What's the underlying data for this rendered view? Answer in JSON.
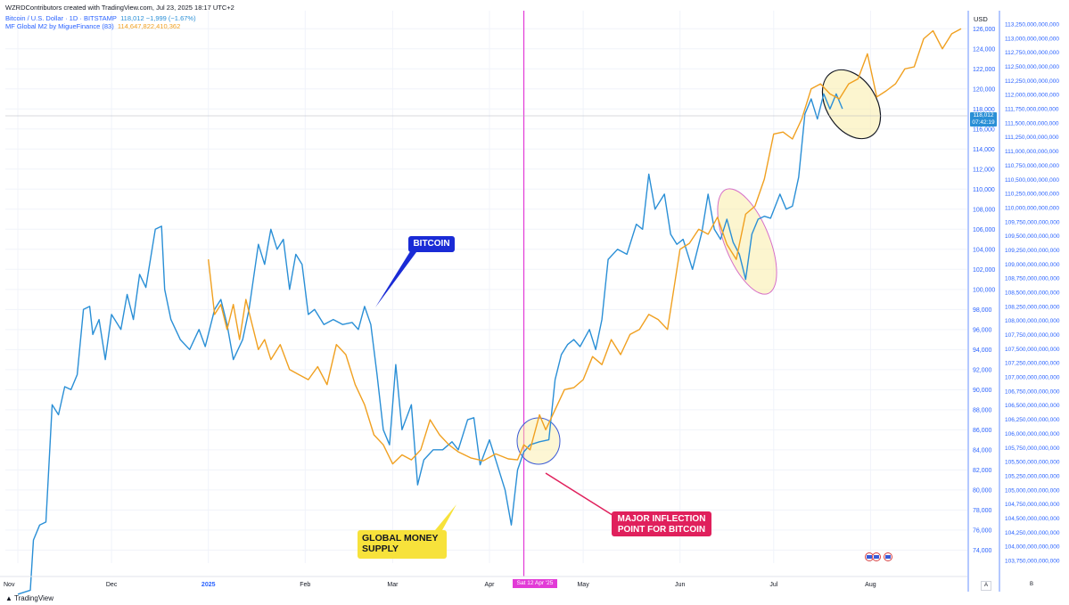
{
  "header": {
    "credit": "WZRDContributors created with TradingView.com, Jul 23, 2025 18:17 UTC+2",
    "btc_series": "Bitcoin / U.S. Dollar · 1D · BITSTAMP",
    "btc_values": "118,012  −1,999 (−1.67%)",
    "m2_series": "MF Global M2 by MigueFinance (83)",
    "m2_value": "114,647,822,410,362"
  },
  "annotations": {
    "bitcoin": "BITCOIN",
    "money_line1": "GLOBAL MONEY",
    "money_line2": "SUPPLY",
    "inflection_line1": "MAJOR INFLECTION",
    "inflection_line2": "POINT FOR BITCOIN"
  },
  "axis": {
    "currency": "USD",
    "price_tag_value": "118,012",
    "price_tag_time": "07:42:19",
    "date_tag": "Sat 12 Apr '25",
    "scale_a": "A",
    "scale_b": "B"
  },
  "footer": {
    "logo": "TradingView"
  },
  "colors": {
    "bitcoin": "#2a8fd6",
    "global_m2": "#f0a020",
    "inflection_line": "#e23bd7",
    "axis_text": "#2962ff"
  },
  "chart_data": {
    "type": "line",
    "xlabel": "",
    "ylabel": "",
    "x_ticks": [
      "Nov",
      "Dec",
      "2025",
      "Feb",
      "Mar",
      "Apr",
      "May",
      "Jun",
      "Jul",
      "Aug"
    ],
    "y_ticks_usd": [
      74000,
      76000,
      78000,
      80000,
      82000,
      84000,
      86000,
      88000,
      90000,
      92000,
      94000,
      96000,
      98000,
      100000,
      102000,
      104000,
      106000,
      108000,
      110000,
      112000,
      114000,
      116000,
      118000,
      120000,
      122000,
      124000,
      126000
    ],
    "ylim_usd": [
      72700,
      127800
    ],
    "y_ticks_m2": [
      "103,750,000,000,000",
      "104,000,000,000,000",
      "104,250,000,000,000",
      "104,500,000,000,000",
      "104,750,000,000,000",
      "105,000,000,000,000",
      "105,250,000,000,000",
      "105,500,000,000,000",
      "105,750,000,000,000",
      "106,000,000,000,000",
      "106,250,000,000,000",
      "106,500,000,000,000",
      "106,750,000,000,000",
      "107,000,000,000,000",
      "107,250,000,000,000",
      "107,500,000,000,000",
      "107,750,000,000,000",
      "108,000,000,000,000",
      "108,250,000,000,000",
      "108,500,000,000,000",
      "108,750,000,000,000",
      "109,000,000,000,000",
      "109,250,000,000,000",
      "109,500,000,000,000",
      "109,750,000,000,000",
      "110,000,000,000,000",
      "110,250,000,000,000",
      "110,500,000,000,000",
      "110,750,000,000,000",
      "111,000,000,000,000",
      "111,250,000,000,000",
      "111,500,000,000,000",
      "111,750,000,000,000",
      "112,000,000,000,000",
      "112,250,000,000,000",
      "112,500,000,000,000",
      "112,750,000,000,000",
      "113,000,000,000,000",
      "113,250,000,000,000"
    ],
    "series": [
      {
        "name": "Bitcoin / U.S. Dollar · 1D · BITSTAMP",
        "values": [
          [
            "2024-11-01",
            69600
          ],
          [
            "2024-11-05",
            70000
          ],
          [
            "2024-11-06",
            75000
          ],
          [
            "2024-11-08",
            76500
          ],
          [
            "2024-11-10",
            76800
          ],
          [
            "2024-11-12",
            88500
          ],
          [
            "2024-11-14",
            87500
          ],
          [
            "2024-11-16",
            90300
          ],
          [
            "2024-11-18",
            90000
          ],
          [
            "2024-11-20",
            91500
          ],
          [
            "2024-11-22",
            98000
          ],
          [
            "2024-11-24",
            98300
          ],
          [
            "2024-11-25",
            95500
          ],
          [
            "2024-11-27",
            97000
          ],
          [
            "2024-11-29",
            93000
          ],
          [
            "2024-12-01",
            97500
          ],
          [
            "2024-12-04",
            96000
          ],
          [
            "2024-12-06",
            99500
          ],
          [
            "2024-12-08",
            97000
          ],
          [
            "2024-12-10",
            101500
          ],
          [
            "2024-12-12",
            100200
          ],
          [
            "2024-12-15",
            106000
          ],
          [
            "2024-12-17",
            106300
          ],
          [
            "2024-12-18",
            100000
          ],
          [
            "2024-12-20",
            97000
          ],
          [
            "2024-12-23",
            95000
          ],
          [
            "2024-12-26",
            94000
          ],
          [
            "2024-12-29",
            96000
          ],
          [
            "2024-12-31",
            94300
          ],
          [
            "2025-01-03",
            98000
          ],
          [
            "2025-01-05",
            99000
          ],
          [
            "2025-01-07",
            96500
          ],
          [
            "2025-01-09",
            93000
          ],
          [
            "2025-01-12",
            95000
          ],
          [
            "2025-01-14",
            98000
          ],
          [
            "2025-01-17",
            104500
          ],
          [
            "2025-01-19",
            102500
          ],
          [
            "2025-01-21",
            106000
          ],
          [
            "2025-01-23",
            104000
          ],
          [
            "2025-01-25",
            105000
          ],
          [
            "2025-01-27",
            100000
          ],
          [
            "2025-01-29",
            103500
          ],
          [
            "2025-01-31",
            102500
          ],
          [
            "2025-02-02",
            97500
          ],
          [
            "2025-02-04",
            98000
          ],
          [
            "2025-02-07",
            96500
          ],
          [
            "2025-02-10",
            97000
          ],
          [
            "2025-02-13",
            96500
          ],
          [
            "2025-02-16",
            96700
          ],
          [
            "2025-02-18",
            96000
          ],
          [
            "2025-02-20",
            98300
          ],
          [
            "2025-02-22",
            96500
          ],
          [
            "2025-02-24",
            91500
          ],
          [
            "2025-02-26",
            86000
          ],
          [
            "2025-02-28",
            84500
          ],
          [
            "2025-03-02",
            92500
          ],
          [
            "2025-03-04",
            86000
          ],
          [
            "2025-03-07",
            88500
          ],
          [
            "2025-03-09",
            80500
          ],
          [
            "2025-03-11",
            83000
          ],
          [
            "2025-03-14",
            84000
          ],
          [
            "2025-03-17",
            84000
          ],
          [
            "2025-03-20",
            84800
          ],
          [
            "2025-03-22",
            84000
          ],
          [
            "2025-03-25",
            87000
          ],
          [
            "2025-03-27",
            87200
          ],
          [
            "2025-03-29",
            82500
          ],
          [
            "2025-04-01",
            85000
          ],
          [
            "2025-04-03",
            83000
          ],
          [
            "2025-04-06",
            80000
          ],
          [
            "2025-04-08",
            76500
          ],
          [
            "2025-04-10",
            82000
          ],
          [
            "2025-04-12",
            83800
          ],
          [
            "2025-04-14",
            84500
          ],
          [
            "2025-04-17",
            84800
          ],
          [
            "2025-04-20",
            85000
          ],
          [
            "2025-04-22",
            91000
          ],
          [
            "2025-04-24",
            93500
          ],
          [
            "2025-04-26",
            94500
          ],
          [
            "2025-04-28",
            95000
          ],
          [
            "2025-04-30",
            94300
          ],
          [
            "2025-05-03",
            96000
          ],
          [
            "2025-05-05",
            94000
          ],
          [
            "2025-05-07",
            97000
          ],
          [
            "2025-05-09",
            103000
          ],
          [
            "2025-05-12",
            104000
          ],
          [
            "2025-05-15",
            103500
          ],
          [
            "2025-05-18",
            106500
          ],
          [
            "2025-05-20",
            106000
          ],
          [
            "2025-05-22",
            111500
          ],
          [
            "2025-05-24",
            108000
          ],
          [
            "2025-05-27",
            109500
          ],
          [
            "2025-05-29",
            105500
          ],
          [
            "2025-05-31",
            104500
          ],
          [
            "2025-06-02",
            105000
          ],
          [
            "2025-06-05",
            102000
          ],
          [
            "2025-06-08",
            105700
          ],
          [
            "2025-06-10",
            109500
          ],
          [
            "2025-06-12",
            106000
          ],
          [
            "2025-06-14",
            105000
          ],
          [
            "2025-06-16",
            107000
          ],
          [
            "2025-06-18",
            104700
          ],
          [
            "2025-06-20",
            103500
          ],
          [
            "2025-06-22",
            101000
          ],
          [
            "2025-06-24",
            105500
          ],
          [
            "2025-06-26",
            107000
          ],
          [
            "2025-06-28",
            107300
          ],
          [
            "2025-06-30",
            107100
          ],
          [
            "2025-07-03",
            109500
          ],
          [
            "2025-07-05",
            108000
          ],
          [
            "2025-07-07",
            108300
          ],
          [
            "2025-07-09",
            111200
          ],
          [
            "2025-07-11",
            117500
          ],
          [
            "2025-07-13",
            119000
          ],
          [
            "2025-07-15",
            117000
          ],
          [
            "2025-07-17",
            119500
          ],
          [
            "2025-07-19",
            118000
          ],
          [
            "2025-07-21",
            119500
          ],
          [
            "2025-07-23",
            118012
          ]
        ]
      },
      {
        "name": "MF Global M2 by MigueFinance (83)",
        "values": [
          [
            "2025-01-01",
            103000
          ],
          [
            "2025-01-03",
            97500
          ],
          [
            "2025-01-05",
            98500
          ],
          [
            "2025-01-07",
            96000
          ],
          [
            "2025-01-09",
            98500
          ],
          [
            "2025-01-11",
            95000
          ],
          [
            "2025-01-13",
            99000
          ],
          [
            "2025-01-15",
            96500
          ],
          [
            "2025-01-17",
            94000
          ],
          [
            "2025-01-19",
            95000
          ],
          [
            "2025-01-21",
            93000
          ],
          [
            "2025-01-24",
            94500
          ],
          [
            "2025-01-27",
            92000
          ],
          [
            "2025-01-30",
            91500
          ],
          [
            "2025-02-02",
            91000
          ],
          [
            "2025-02-05",
            92300
          ],
          [
            "2025-02-08",
            90500
          ],
          [
            "2025-02-11",
            94500
          ],
          [
            "2025-02-14",
            93500
          ],
          [
            "2025-02-17",
            90500
          ],
          [
            "2025-02-20",
            88500
          ],
          [
            "2025-02-23",
            85500
          ],
          [
            "2025-02-26",
            84500
          ],
          [
            "2025-03-01",
            82600
          ],
          [
            "2025-03-04",
            83500
          ],
          [
            "2025-03-07",
            83000
          ],
          [
            "2025-03-10",
            84000
          ],
          [
            "2025-03-13",
            87000
          ],
          [
            "2025-03-16",
            85500
          ],
          [
            "2025-03-19",
            84500
          ],
          [
            "2025-03-22",
            83800
          ],
          [
            "2025-03-26",
            83200
          ],
          [
            "2025-03-30",
            82900
          ],
          [
            "2025-04-03",
            83600
          ],
          [
            "2025-04-07",
            83100
          ],
          [
            "2025-04-10",
            83000
          ],
          [
            "2025-04-12",
            84500
          ],
          [
            "2025-04-14",
            84000
          ],
          [
            "2025-04-17",
            87500
          ],
          [
            "2025-04-19",
            86000
          ],
          [
            "2025-04-22",
            88000
          ],
          [
            "2025-04-25",
            90000
          ],
          [
            "2025-04-28",
            90200
          ],
          [
            "2025-05-01",
            91000
          ],
          [
            "2025-05-04",
            93300
          ],
          [
            "2025-05-07",
            92500
          ],
          [
            "2025-05-10",
            95000
          ],
          [
            "2025-05-13",
            93500
          ],
          [
            "2025-05-16",
            95500
          ],
          [
            "2025-05-19",
            96000
          ],
          [
            "2025-05-22",
            97500
          ],
          [
            "2025-05-25",
            97000
          ],
          [
            "2025-05-28",
            96000
          ],
          [
            "2025-06-01",
            104000
          ],
          [
            "2025-06-04",
            104600
          ],
          [
            "2025-06-07",
            106000
          ],
          [
            "2025-06-10",
            105500
          ],
          [
            "2025-06-13",
            107200
          ],
          [
            "2025-06-16",
            104500
          ],
          [
            "2025-06-19",
            103000
          ],
          [
            "2025-06-22",
            107500
          ],
          [
            "2025-06-25",
            108300
          ],
          [
            "2025-06-28",
            111000
          ],
          [
            "2025-07-01",
            115500
          ],
          [
            "2025-07-04",
            115700
          ],
          [
            "2025-07-07",
            115000
          ],
          [
            "2025-07-10",
            117000
          ],
          [
            "2025-07-13",
            120000
          ],
          [
            "2025-07-16",
            120500
          ],
          [
            "2025-07-19",
            119500
          ],
          [
            "2025-07-22",
            119000
          ],
          [
            "2025-07-25",
            120500
          ],
          [
            "2025-07-28",
            121000
          ],
          [
            "2025-07-31",
            123500
          ],
          [
            "2025-08-03",
            119200
          ],
          [
            "2025-08-06",
            119800
          ],
          [
            "2025-08-09",
            120500
          ],
          [
            "2025-08-12",
            122000
          ],
          [
            "2025-08-15",
            122200
          ],
          [
            "2025-08-18",
            125000
          ],
          [
            "2025-08-21",
            125800
          ],
          [
            "2025-08-24",
            124000
          ],
          [
            "2025-08-27",
            125500
          ],
          [
            "2025-08-30",
            126000
          ]
        ]
      }
    ],
    "marker_date": "2025-04-12",
    "grid": true,
    "legend": "top-left"
  }
}
